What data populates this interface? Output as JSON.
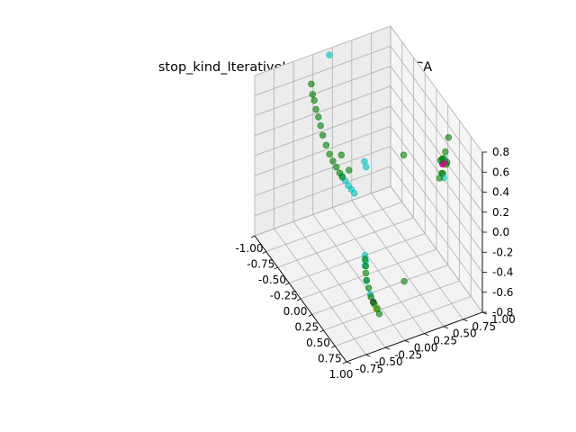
{
  "chart_data": {
    "type": "scatter",
    "projection": "3d",
    "title": "stop_kind_IterativeImputer_original_ _PCA",
    "xlabel": "",
    "ylabel": "",
    "zlabel": "",
    "xlim": [
      -1.0,
      1.0
    ],
    "ylim": [
      -0.75,
      1.0
    ],
    "zlim": [
      -0.8,
      0.8
    ],
    "x_ticks": [
      "-1.00",
      "-0.75",
      "-0.50",
      "-0.25",
      "0.00",
      "0.25",
      "0.50",
      "0.75",
      "1.00"
    ],
    "y_ticks": [
      "-0.75",
      "-0.50",
      "-0.25",
      "0.00",
      "0.25",
      "0.50",
      "0.75",
      "1.00"
    ],
    "z_ticks": [
      "-0.8",
      "-0.6",
      "-0.4",
      "-0.2",
      "0.0",
      "0.2",
      "0.4",
      "0.6",
      "0.8"
    ],
    "grid": true,
    "legend": "none",
    "colors": {
      "green": "#008000",
      "cyan": "#00bfbf",
      "purple": "#bf00bf",
      "red": "#ff2000",
      "black": "#000000",
      "yellow": "#bfbf00"
    },
    "series": [
      {
        "color": "green",
        "points": [
          [
            -0.95,
            -0.05,
            0.55
          ],
          [
            -0.94,
            -0.04,
            0.45
          ],
          [
            -0.92,
            -0.03,
            0.4
          ],
          [
            -0.9,
            -0.02,
            0.32
          ],
          [
            -0.88,
            0.0,
            0.25
          ],
          [
            -0.85,
            0.01,
            0.18
          ],
          [
            -0.82,
            0.02,
            0.1
          ],
          [
            -0.78,
            0.04,
            0.02
          ],
          [
            -0.74,
            0.06,
            -0.05
          ],
          [
            -0.7,
            0.08,
            -0.1
          ],
          [
            -0.66,
            0.1,
            -0.14
          ],
          [
            -0.62,
            0.12,
            -0.18
          ],
          [
            -0.58,
            0.13,
            -0.2
          ],
          [
            -0.55,
            0.1,
            0.05
          ],
          [
            -0.45,
            0.14,
            -0.05
          ],
          [
            0.05,
            0.05,
            -0.6
          ],
          [
            0.1,
            0.03,
            -0.63
          ],
          [
            0.15,
            0.0,
            -0.66
          ],
          [
            0.22,
            -0.03,
            -0.68
          ],
          [
            0.3,
            -0.05,
            -0.7
          ],
          [
            0.4,
            -0.08,
            -0.72
          ],
          [
            0.5,
            -0.1,
            -0.72
          ],
          [
            0.6,
            -0.12,
            -0.7
          ],
          [
            0.7,
            -0.15,
            -0.68
          ],
          [
            0.45,
            0.8,
            0.3
          ],
          [
            0.55,
            0.8,
            0.45
          ],
          [
            0.7,
            0.7,
            0.7
          ],
          [
            0.75,
            0.65,
            0.68
          ],
          [
            0.8,
            0.6,
            0.72
          ],
          [
            0.85,
            0.55,
            0.75
          ],
          [
            0.9,
            0.55,
            0.65
          ],
          [
            0.88,
            0.52,
            0.6
          ],
          [
            0.65,
            0.75,
            0.55
          ],
          [
            0.6,
            0.8,
            0.75
          ],
          [
            0.3,
            0.4,
            0.5
          ],
          [
            0.82,
            0.1,
            -0.35
          ]
        ]
      },
      {
        "color": "cyan",
        "points": [
          [
            -0.98,
            0.2,
            0.75
          ],
          [
            -0.6,
            0.14,
            -0.2
          ],
          [
            -0.55,
            0.15,
            -0.22
          ],
          [
            -0.5,
            0.16,
            -0.24
          ],
          [
            -0.45,
            0.17,
            -0.25
          ],
          [
            -0.4,
            0.18,
            -0.26
          ],
          [
            -0.3,
            0.25,
            0.1
          ],
          [
            -0.25,
            0.24,
            0.08
          ],
          [
            0.0,
            0.08,
            -0.6
          ],
          [
            0.05,
            0.06,
            -0.62
          ],
          [
            0.08,
            0.03,
            -0.64
          ],
          [
            0.2,
            -0.02,
            -0.7
          ],
          [
            0.35,
            -0.06,
            -0.73
          ],
          [
            0.78,
            0.62,
            0.7
          ],
          [
            0.92,
            0.55,
            0.62
          ]
        ]
      },
      {
        "color": "purple",
        "points": [
          [
            0.72,
            0.68,
            0.62
          ],
          [
            0.78,
            0.62,
            0.65
          ],
          [
            0.84,
            0.58,
            0.7
          ]
        ]
      },
      {
        "color": "red",
        "points": [
          [
            0.82,
            0.6,
            0.68
          ]
        ]
      },
      {
        "color": "black",
        "points": [
          [
            0.45,
            -0.08,
            -0.74
          ]
        ]
      },
      {
        "color": "yellow",
        "points": [
          [
            0.55,
            -0.1,
            -0.74
          ]
        ]
      }
    ]
  }
}
